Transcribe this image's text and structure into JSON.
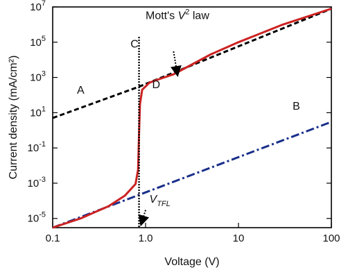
{
  "chart_data": {
    "type": "line",
    "x_scale": "log",
    "y_scale": "log",
    "xlim": [
      0.1,
      100
    ],
    "ylim": [
      3e-06,
      10000000
    ],
    "xlabel": "Voltage (V)",
    "ylabel": "Current density (mA/cm²)",
    "x_ticks": [
      {
        "value": 0.1,
        "label": "0.1"
      },
      {
        "value": 1,
        "label": "1.0"
      },
      {
        "value": 10,
        "label": "10"
      },
      {
        "value": 100,
        "label": "100"
      }
    ],
    "y_ticks": [
      {
        "value": 1e-05,
        "base": "10",
        "exp": "-5"
      },
      {
        "value": 0.001,
        "base": "10",
        "exp": "-3"
      },
      {
        "value": 0.1,
        "base": "10",
        "exp": "-1"
      },
      {
        "value": 10,
        "base": "10",
        "exp": "1"
      },
      {
        "value": 1000,
        "base": "10",
        "exp": "3"
      },
      {
        "value": 100000,
        "base": "10",
        "exp": "5"
      },
      {
        "value": 10000000,
        "base": "10",
        "exp": "7"
      }
    ],
    "series": [
      {
        "key": "A",
        "color": "#000000",
        "style": "dashed",
        "points": [
          [
            0.1,
            5
          ],
          [
            0.85,
            300
          ],
          [
            100,
            8000000
          ]
        ]
      },
      {
        "key": "B",
        "color": "#1a2f8a",
        "style": "dash-dot",
        "points": [
          [
            0.1,
            3e-06
          ],
          [
            100,
            3
          ]
        ]
      },
      {
        "key": "red",
        "color": "#cc2222",
        "style": "solid",
        "points": [
          [
            0.1,
            3e-06
          ],
          [
            0.2,
            1e-05
          ],
          [
            0.4,
            5e-05
          ],
          [
            0.6,
            0.0002
          ],
          [
            0.78,
            0.0009
          ],
          [
            0.83,
            0.006
          ],
          [
            0.85,
            0.5
          ],
          [
            0.87,
            30
          ],
          [
            0.92,
            200
          ],
          [
            1.1,
            500
          ],
          [
            1.3,
            700
          ],
          [
            2,
            1500
          ],
          [
            5,
            20000
          ],
          [
            10,
            100000
          ],
          [
            30,
            1000000
          ],
          [
            100,
            8000000
          ]
        ]
      }
    ],
    "vline": {
      "x": 0.85,
      "y_top": 200000,
      "color": "#000000",
      "style": "dotted"
    },
    "annotations": [
      {
        "text": "A",
        "x": 0.2,
        "y": 120
      },
      {
        "text": "B",
        "x": 42,
        "y": 15
      },
      {
        "text": "C",
        "x": 0.76,
        "y": 50000
      },
      {
        "text": "D",
        "x": 1.3,
        "y": 250
      }
    ],
    "mott_label": {
      "prefix": "Mott's ",
      "var": "V",
      "sup": "2",
      "suffix": " law",
      "x": 1.0,
      "y": 2000000,
      "arrow_from": [
        2.0,
        30000
      ],
      "arrow_to": [
        2.2,
        1500
      ]
    },
    "vtfl_label": {
      "var": "V",
      "sub": "TFL",
      "x": 1.1,
      "y": 8e-05,
      "arrow_from": [
        1.0,
        3e-05
      ],
      "arrow_to": [
        0.9,
        5e-06
      ]
    }
  }
}
